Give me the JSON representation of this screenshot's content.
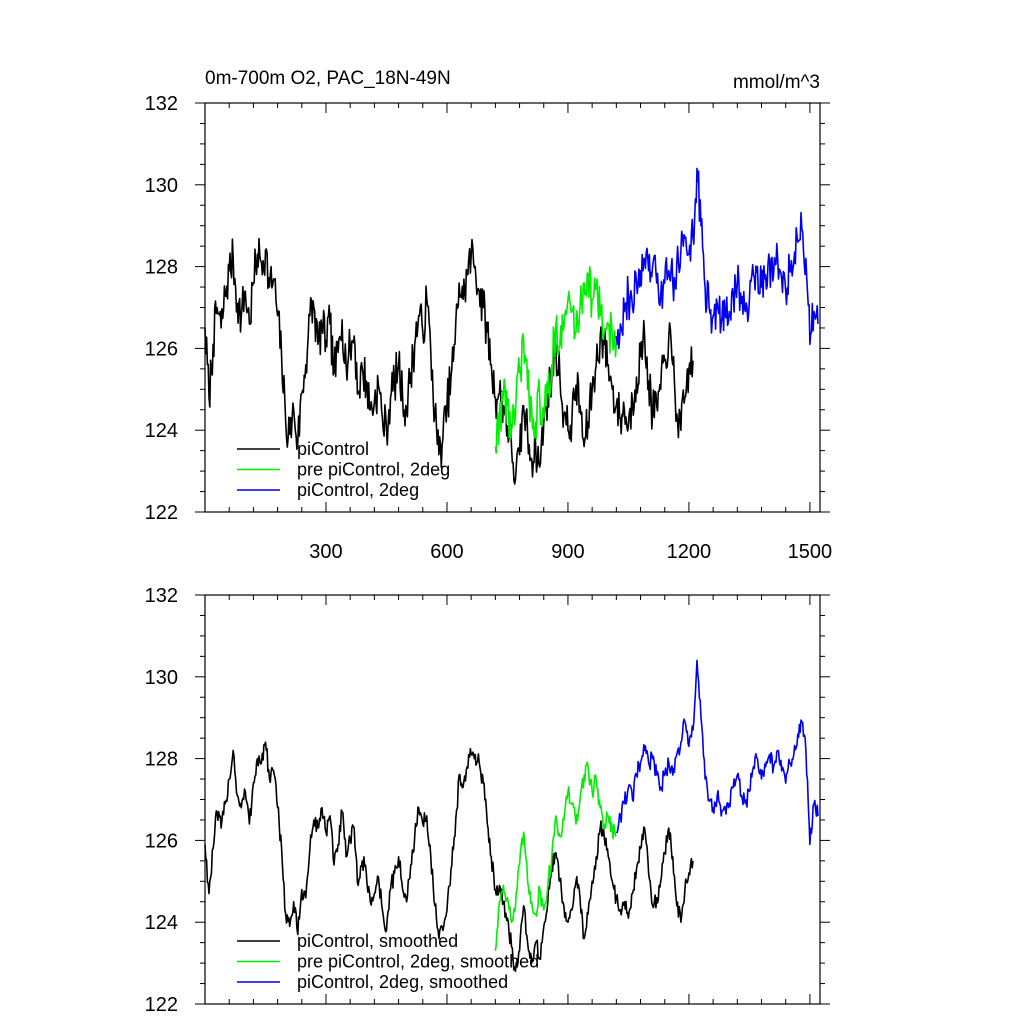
{
  "chart_data": [
    {
      "type": "line",
      "title": "0m-700m O2, PAC_18N-49N",
      "units": "mmol/m^3",
      "xlim": [
        0,
        1525
      ],
      "ylim": [
        122,
        132
      ],
      "xticks": [
        300,
        600,
        900,
        1200,
        1500
      ],
      "yticks": [
        122,
        124,
        126,
        128,
        130,
        132
      ],
      "grid": false,
      "legend_position": "bottom-left",
      "series": [
        {
          "name": "piControl",
          "color": "#000000",
          "x": [
            0,
            10,
            20,
            30,
            40,
            50,
            60,
            70,
            80,
            90,
            100,
            110,
            120,
            130,
            140,
            150,
            160,
            170,
            180,
            190,
            200,
            210,
            220,
            230,
            240,
            250,
            260,
            270,
            280,
            290,
            300,
            310,
            320,
            330,
            340,
            350,
            360,
            370,
            380,
            390,
            400,
            410,
            420,
            430,
            440,
            450,
            460,
            470,
            480,
            490,
            500,
            510,
            520,
            530,
            540,
            550,
            560,
            570,
            580,
            590,
            600,
            610,
            620,
            630,
            640,
            650,
            660,
            670,
            680,
            690,
            700,
            710,
            720,
            730,
            740,
            750,
            760,
            770,
            780,
            790,
            800,
            810,
            820,
            830,
            840,
            850,
            860,
            870,
            880,
            890,
            900,
            910,
            920,
            930,
            940,
            950,
            960,
            970,
            980,
            990,
            1000,
            1010,
            1020,
            1030,
            1040,
            1050,
            1060,
            1070,
            1080,
            1090,
            1100,
            1110,
            1120,
            1130,
            1140,
            1150,
            1160,
            1170,
            1180,
            1190,
            1200,
            1210
          ],
          "y": [
            126.5,
            124.8,
            126.1,
            127.0,
            126.5,
            127.3,
            127.9,
            128.2,
            127.1,
            126.8,
            127.4,
            126.6,
            127.6,
            128.3,
            128.1,
            128.4,
            127.5,
            127.7,
            126.8,
            125.8,
            124.2,
            123.9,
            124.5,
            123.7,
            124.9,
            125.6,
            126.8,
            127.0,
            126.1,
            126.5,
            126.2,
            126.6,
            125.4,
            125.9,
            126.7,
            125.6,
            126.0,
            126.3,
            124.9,
            125.5,
            125.2,
            124.5,
            124.7,
            125.1,
            124.3,
            124.0,
            124.8,
            125.2,
            125.6,
            124.8,
            124.5,
            125.4,
            126.1,
            126.8,
            126.4,
            127.2,
            125.9,
            124.4,
            123.4,
            123.8,
            124.6,
            125.3,
            126.1,
            127.6,
            127.2,
            127.8,
            128.3,
            128.0,
            127.4,
            127.0,
            126.4,
            125.6,
            124.8,
            124.9,
            124.6,
            124.1,
            123.6,
            122.8,
            123.4,
            124.6,
            123.9,
            123.3,
            123.6,
            123.1,
            124.2,
            124.9,
            125.3,
            126.0,
            125.3,
            124.4,
            124.0,
            124.3,
            125.1,
            124.6,
            123.6,
            124.2,
            125.0,
            125.6,
            126.3,
            126.1,
            125.6,
            125.0,
            124.6,
            124.3,
            124.5,
            124.1,
            124.7,
            125.3,
            125.8,
            126.3,
            125.2,
            124.4,
            124.6,
            125.0,
            125.7,
            126.3,
            125.6,
            124.4,
            124.0,
            124.8,
            125.5,
            125.7
          ],
          "noise": 0.55
        },
        {
          "name": "pre piControl, 2deg",
          "color": "#00ee00",
          "x": [
            720,
            730,
            740,
            750,
            760,
            770,
            780,
            790,
            800,
            810,
            820,
            830,
            840,
            850,
            860,
            870,
            880,
            890,
            900,
            910,
            920,
            930,
            940,
            950,
            960,
            970,
            980,
            990,
            1000,
            1010,
            1020
          ],
          "y": [
            123.6,
            124.3,
            124.9,
            124.6,
            124.0,
            124.4,
            125.4,
            126.2,
            125.0,
            124.5,
            124.2,
            124.8,
            124.3,
            124.9,
            125.6,
            126.6,
            126.1,
            126.5,
            127.2,
            126.9,
            126.4,
            127.0,
            127.6,
            127.8,
            127.2,
            127.5,
            126.8,
            126.4,
            126.6,
            126.3,
            126.1
          ],
          "noise": 0.6
        },
        {
          "name": "piControl, 2deg",
          "color": "#0000ee",
          "x": [
            1020,
            1030,
            1040,
            1050,
            1060,
            1070,
            1080,
            1090,
            1100,
            1110,
            1120,
            1130,
            1140,
            1150,
            1160,
            1170,
            1180,
            1190,
            1200,
            1210,
            1220,
            1230,
            1240,
            1250,
            1260,
            1270,
            1280,
            1290,
            1300,
            1310,
            1320,
            1330,
            1340,
            1350,
            1360,
            1370,
            1380,
            1390,
            1400,
            1410,
            1420,
            1430,
            1440,
            1450,
            1460,
            1470,
            1480,
            1490,
            1500,
            1510,
            1520
          ],
          "y": [
            126.3,
            126.6,
            126.9,
            127.3,
            127.0,
            127.6,
            127.9,
            128.2,
            127.9,
            128.0,
            127.6,
            127.3,
            127.6,
            127.9,
            127.6,
            128.1,
            128.4,
            128.7,
            128.3,
            128.7,
            130.4,
            129.0,
            127.5,
            127.0,
            126.8,
            127.1,
            126.6,
            126.8,
            126.9,
            127.3,
            127.6,
            127.1,
            126.9,
            127.2,
            127.8,
            128.0,
            127.5,
            127.8,
            128.1,
            127.8,
            128.2,
            127.7,
            127.4,
            127.9,
            128.1,
            128.6,
            128.9,
            128.2,
            126.1,
            126.9,
            126.6
          ],
          "noise": 0.55
        }
      ]
    },
    {
      "type": "line",
      "xlim": [
        0,
        1525
      ],
      "ylim": [
        122,
        132
      ],
      "yticks": [
        122,
        124,
        126,
        128,
        130,
        132
      ],
      "grid": false,
      "legend_position": "bottom-left",
      "series": [
        {
          "name": "piControl, smoothed",
          "color": "#000000",
          "x": [
            0,
            10,
            20,
            30,
            40,
            50,
            60,
            70,
            80,
            90,
            100,
            110,
            120,
            130,
            140,
            150,
            160,
            170,
            180,
            190,
            200,
            210,
            220,
            230,
            240,
            250,
            260,
            270,
            280,
            290,
            300,
            310,
            320,
            330,
            340,
            350,
            360,
            370,
            380,
            390,
            400,
            410,
            420,
            430,
            440,
            450,
            460,
            470,
            480,
            490,
            500,
            510,
            520,
            530,
            540,
            550,
            560,
            570,
            580,
            590,
            600,
            610,
            620,
            630,
            640,
            650,
            660,
            670,
            680,
            690,
            700,
            710,
            720,
            730,
            740,
            750,
            760,
            770,
            780,
            790,
            800,
            810,
            820,
            830,
            840,
            850,
            860,
            870,
            880,
            890,
            900,
            910,
            920,
            930,
            940,
            950,
            960,
            970,
            980,
            990,
            1000,
            1010,
            1020,
            1030,
            1040,
            1050,
            1060,
            1070,
            1080,
            1090,
            1100,
            1110,
            1120,
            1130,
            1140,
            1150,
            1160,
            1170,
            1180,
            1190,
            1200,
            1210
          ],
          "y": [
            125.9,
            124.7,
            125.8,
            126.7,
            126.3,
            126.9,
            127.5,
            128.2,
            127.1,
            126.8,
            127.2,
            126.4,
            127.4,
            128.0,
            127.9,
            128.4,
            127.5,
            127.7,
            126.8,
            125.8,
            124.2,
            123.9,
            124.5,
            123.7,
            124.8,
            124.6,
            125.8,
            126.5,
            126.3,
            126.8,
            126.2,
            126.6,
            125.4,
            125.9,
            126.7,
            125.6,
            126.0,
            126.3,
            124.9,
            125.5,
            125.2,
            124.5,
            124.7,
            125.1,
            124.3,
            123.8,
            124.8,
            125.2,
            125.6,
            124.8,
            124.5,
            125.4,
            126.1,
            126.8,
            126.4,
            126.6,
            125.6,
            124.4,
            123.6,
            123.8,
            124.3,
            125.3,
            126.1,
            127.6,
            127.3,
            127.8,
            128.1,
            128.1,
            127.9,
            127.4,
            126.4,
            125.6,
            124.8,
            124.9,
            124.5,
            124.1,
            123.4,
            122.8,
            123.3,
            124.4,
            123.5,
            123.0,
            123.5,
            123.1,
            123.9,
            124.5,
            125.3,
            125.7,
            125.0,
            124.4,
            124.0,
            124.3,
            125.0,
            124.6,
            123.6,
            124.2,
            125.0,
            125.6,
            126.3,
            126.1,
            125.6,
            125.0,
            124.6,
            124.3,
            124.5,
            124.1,
            124.7,
            125.3,
            125.8,
            126.3,
            125.2,
            124.4,
            124.6,
            125.0,
            125.7,
            126.3,
            125.6,
            124.4,
            124.0,
            124.8,
            125.2,
            125.5
          ],
          "noise": 0.22
        },
        {
          "name": "pre piControl, 2deg, smoothed",
          "color": "#00ee00",
          "x": [
            720,
            730,
            740,
            750,
            760,
            770,
            780,
            790,
            800,
            810,
            820,
            830,
            840,
            850,
            860,
            870,
            880,
            890,
            900,
            910,
            920,
            930,
            940,
            950,
            960,
            970,
            980,
            990,
            1000,
            1010,
            1020
          ],
          "y": [
            123.3,
            124.5,
            124.9,
            124.6,
            124.0,
            124.4,
            125.4,
            126.2,
            125.0,
            124.5,
            124.2,
            124.8,
            124.3,
            124.9,
            125.6,
            126.6,
            126.1,
            126.5,
            127.2,
            126.9,
            126.4,
            127.0,
            127.6,
            127.8,
            127.2,
            127.5,
            126.8,
            126.4,
            126.6,
            126.3,
            126.1
          ],
          "noise": 0.22
        },
        {
          "name": "piControl, 2deg, smoothed",
          "color": "#0000ee",
          "x": [
            1020,
            1030,
            1040,
            1050,
            1060,
            1070,
            1080,
            1090,
            1100,
            1110,
            1120,
            1130,
            1140,
            1150,
            1160,
            1170,
            1180,
            1190,
            1200,
            1210,
            1220,
            1230,
            1240,
            1250,
            1260,
            1270,
            1280,
            1290,
            1300,
            1310,
            1320,
            1330,
            1340,
            1350,
            1360,
            1370,
            1380,
            1390,
            1400,
            1410,
            1420,
            1430,
            1440,
            1450,
            1460,
            1470,
            1480,
            1490,
            1500,
            1510,
            1520
          ],
          "y": [
            126.2,
            126.6,
            126.9,
            127.3,
            127.0,
            127.6,
            127.9,
            128.2,
            127.9,
            128.0,
            127.6,
            127.3,
            127.6,
            127.9,
            127.6,
            128.1,
            128.4,
            128.9,
            128.3,
            128.7,
            130.4,
            129.0,
            127.5,
            127.0,
            126.8,
            127.1,
            126.6,
            126.8,
            126.9,
            127.3,
            127.6,
            127.1,
            126.9,
            127.2,
            127.8,
            128.0,
            127.5,
            127.8,
            128.1,
            127.8,
            128.2,
            127.7,
            127.4,
            127.9,
            128.1,
            128.6,
            128.9,
            128.2,
            125.9,
            126.9,
            126.6
          ],
          "noise": 0.22
        }
      ]
    }
  ]
}
